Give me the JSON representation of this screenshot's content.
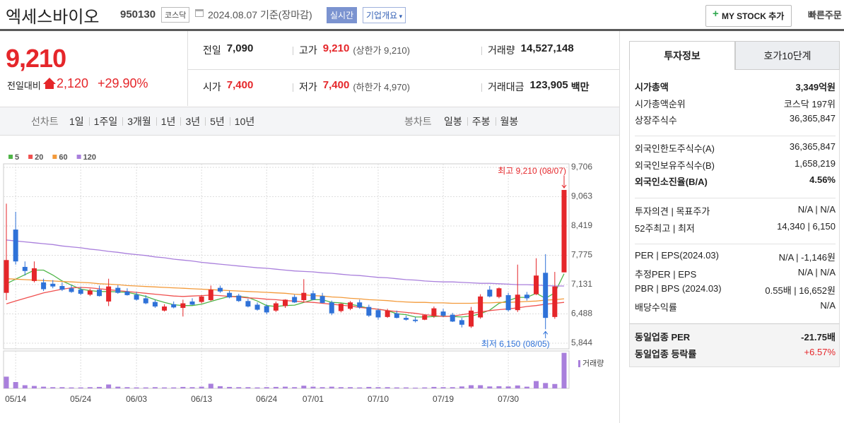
{
  "header": {
    "name": "엑세스바이오",
    "code": "950130",
    "market": "코스닥",
    "date": "2024.08.07 기준(장마감)",
    "realtime": "실시간",
    "company_info": "기업개요",
    "mystock": "MY STOCK 추가",
    "quick_order": "빠른주문"
  },
  "price": {
    "current": "9,210",
    "change_label": "전일대비",
    "change": "2,120",
    "rate": "+29.90%"
  },
  "summary": [
    [
      {
        "label": "전일",
        "value": "7,090"
      },
      {
        "label": "고가",
        "value": "9,210",
        "note": "(상한가 9,210)"
      },
      {
        "label": "거래량",
        "value": "14,527,148"
      }
    ],
    [
      {
        "label": "시가",
        "value": "7,400"
      },
      {
        "label": "저가",
        "value": "7,400",
        "note": "(하한가 4,970)"
      },
      {
        "label": "거래대금",
        "value": "123,905",
        "unit": "백만"
      }
    ]
  ],
  "toolbar": {
    "line_label": "선차트",
    "line_periods": [
      "1일",
      "1주일",
      "3개월",
      "1년",
      "3년",
      "5년",
      "10년"
    ],
    "candle_label": "봉차트",
    "candle_periods": [
      "일봉",
      "주봉",
      "월봉"
    ]
  },
  "chart_data": {
    "type": "candlestick",
    "categories": [
      null,
      "05/14",
      null,
      null,
      null,
      null,
      null,
      null,
      "05/24",
      null,
      null,
      null,
      null,
      null,
      "06/03",
      null,
      null,
      null,
      null,
      null,
      null,
      "06/13",
      null,
      null,
      null,
      null,
      null,
      null,
      "06/24",
      null,
      null,
      null,
      null,
      "07/01",
      null,
      null,
      null,
      null,
      null,
      null,
      "07/10",
      null,
      null,
      null,
      null,
      null,
      null,
      "07/19",
      null,
      null,
      null,
      null,
      null,
      null,
      "07/30",
      null,
      null,
      null,
      null,
      null,
      null
    ],
    "open": [
      6950,
      8340,
      7520,
      7210,
      7180,
      7150,
      7100,
      7050,
      7020,
      6910,
      7020,
      6760,
      7060,
      6980,
      6910,
      6830,
      6750,
      6560,
      6700,
      6620,
      6760,
      6750,
      6790,
      7060,
      6950,
      6890,
      6770,
      6690,
      6660,
      6560,
      6660,
      6860,
      6790,
      6940,
      6880,
      6740,
      6550,
      6600,
      6740,
      6640,
      6570,
      6420,
      6500,
      6400,
      6360,
      6360,
      6440,
      6540,
      6470,
      6350,
      6210,
      6410,
      7020,
      6860,
      6900,
      6570,
      6910,
      6920,
      7390,
      6420,
      7400
    ],
    "high": [
      8910,
      8730,
      7640,
      7640,
      7260,
      7230,
      7180,
      7120,
      7080,
      7040,
      7110,
      7260,
      7120,
      7050,
      6970,
      6900,
      6800,
      6700,
      6760,
      6800,
      6830,
      6900,
      7110,
      7110,
      7000,
      6930,
      6820,
      6740,
      6700,
      6760,
      6810,
      6910,
      7250,
      7000,
      6950,
      6780,
      6720,
      6770,
      6800,
      6690,
      6600,
      6600,
      6560,
      6450,
      6420,
      6470,
      6650,
      6600,
      6510,
      6400,
      6640,
      6920,
      7100,
      7070,
      6950,
      7570,
      6970,
      7710,
      7800,
      7410,
      9210
    ],
    "low": [
      6790,
      7570,
      7330,
      7180,
      6990,
      7050,
      6990,
      6950,
      6900,
      6880,
      6870,
      6660,
      6930,
      6890,
      6780,
      6700,
      6620,
      6540,
      6610,
      6430,
      6680,
      6720,
      6770,
      6950,
      6830,
      6750,
      6630,
      6560,
      6480,
      6530,
      6620,
      6730,
      6750,
      6790,
      6720,
      6460,
      6520,
      6570,
      6600,
      6420,
      6360,
      6400,
      6390,
      6340,
      6300,
      6350,
      6400,
      6420,
      6310,
      6190,
      6180,
      6380,
      6850,
      6830,
      6540,
      6530,
      6780,
      6900,
      6150,
      6380,
      7400
    ],
    "close": [
      7670,
      7640,
      7430,
      7490,
      7030,
      7090,
      7020,
      6970,
      6930,
      7000,
      6880,
      7090,
      6950,
      6900,
      6800,
      6720,
      6650,
      6650,
      6630,
      6720,
      6690,
      6870,
      7020,
      6980,
      6850,
      6770,
      6650,
      6580,
      6520,
      6720,
      6800,
      6740,
      6950,
      6800,
      6730,
      6500,
      6710,
      6740,
      6630,
      6450,
      6410,
      6560,
      6400,
      6360,
      6330,
      6460,
      6610,
      6450,
      6320,
      6250,
      6560,
      6870,
      6870,
      7050,
      6570,
      6910,
      6830,
      7330,
      6400,
      7090,
      9210
    ],
    "up_color": "#e5262a",
    "down_color": "#2f72d8",
    "ma": [
      {
        "name": "5",
        "color": "#4fb548",
        "values": [
          7150,
          7250,
          7350,
          7450,
          7450,
          7340,
          7210,
          7120,
          7030,
          7000,
          6980,
          6980,
          6970,
          6960,
          6920,
          6870,
          6800,
          6740,
          6690,
          6670,
          6670,
          6700,
          6760,
          6820,
          6870,
          6870,
          6850,
          6770,
          6670,
          6650,
          6670,
          6680,
          6740,
          6800,
          6800,
          6740,
          6730,
          6700,
          6660,
          6610,
          6590,
          6560,
          6490,
          6470,
          6420,
          6420,
          6430,
          6440,
          6430,
          6420,
          6440,
          6490,
          6570,
          6720,
          6780,
          6850,
          6850,
          6940,
          6830,
          6950,
          7370
        ]
      },
      {
        "name": "20",
        "color": "#f0504f",
        "values": [
          6710,
          6770,
          6830,
          6890,
          6950,
          6990,
          7030,
          7060,
          7070,
          7060,
          7040,
          7020,
          7000,
          6980,
          6960,
          6940,
          6920,
          6900,
          6880,
          6870,
          6880,
          6890,
          6900,
          6890,
          6870,
          6860,
          6840,
          6830,
          6810,
          6800,
          6780,
          6770,
          6750,
          6740,
          6720,
          6700,
          6680,
          6660,
          6630,
          6610,
          6590,
          6560,
          6540,
          6520,
          6500,
          6470,
          6450,
          6430,
          6440,
          6470,
          6500,
          6530,
          6560,
          6580,
          6600,
          6620,
          6650,
          6670,
          6700,
          6720,
          6740
        ]
      },
      {
        "name": "60",
        "color": "#f39a3a",
        "values": [
          7260,
          7250,
          7240,
          7230,
          7220,
          7210,
          7200,
          7190,
          7180,
          7170,
          7150,
          7140,
          7130,
          7110,
          7100,
          7090,
          7080,
          7070,
          7060,
          7050,
          7040,
          7030,
          7020,
          7010,
          7000,
          6990,
          6980,
          6970,
          6960,
          6950,
          6940,
          6920,
          6910,
          6890,
          6880,
          6860,
          6850,
          6830,
          6820,
          6800,
          6790,
          6780,
          6760,
          6750,
          6740,
          6740,
          6730,
          6730,
          6720,
          6720,
          6720,
          6730,
          6730,
          6740,
          6740,
          6750,
          6760,
          6770,
          6790,
          6800,
          6820
        ]
      },
      {
        "name": "120",
        "color": "#a97fdc",
        "values": [
          8110,
          8090,
          8070,
          8050,
          8030,
          8010,
          7980,
          7960,
          7940,
          7910,
          7890,
          7860,
          7840,
          7810,
          7790,
          7770,
          7740,
          7720,
          7690,
          7670,
          7650,
          7620,
          7600,
          7580,
          7560,
          7540,
          7520,
          7500,
          7490,
          7470,
          7450,
          7430,
          7420,
          7410,
          7390,
          7380,
          7360,
          7340,
          7330,
          7310,
          7290,
          7280,
          7260,
          7240,
          7230,
          7210,
          7200,
          7190,
          7190,
          7180,
          7170,
          7160,
          7160,
          7150,
          7140,
          7130,
          7130,
          7120,
          7110,
          7100,
          7100
        ]
      }
    ],
    "volume": [
      4800000,
      2600000,
      1300000,
      1000000,
      700000,
      500000,
      500000,
      400000,
      400000,
      500000,
      600000,
      1600000,
      700000,
      500000,
      400000,
      400000,
      500000,
      400000,
      400000,
      600000,
      500000,
      700000,
      1900000,
      900000,
      600000,
      500000,
      500000,
      400000,
      500000,
      600000,
      700000,
      500000,
      1100000,
      700000,
      500000,
      700000,
      500000,
      500000,
      400000,
      600000,
      500000,
      500000,
      400000,
      400000,
      300000,
      400000,
      600000,
      500000,
      500000,
      800000,
      1300000,
      1300000,
      800000,
      900000,
      800000,
      1200000,
      700000,
      3000000,
      2200000,
      1800000,
      14527148
    ],
    "volume_color": "#a97fdc",
    "volume_label": "거래량",
    "volume_ylim": [
      0,
      15000000
    ],
    "ylim": [
      5844,
      9706
    ],
    "yticks": [
      {
        "value": 9706,
        "label": "9,706"
      },
      {
        "value": 9063,
        "label": "9,063"
      },
      {
        "value": 8419,
        "label": "8,419"
      },
      {
        "value": 7775,
        "label": "7,775"
      },
      {
        "value": 7131,
        "label": "7,131"
      },
      {
        "value": 6488,
        "label": "6,488"
      },
      {
        "value": 5844,
        "label": "5,844"
      }
    ],
    "grid": true,
    "high_label": "최고 9,210 (08/07)",
    "low_label": "최저 6,150 (08/05)"
  },
  "info": {
    "tabs": [
      "투자정보",
      "호가10단계"
    ],
    "groups": [
      [
        {
          "label": "시가총액",
          "value": "3,349억원"
        },
        {
          "label": "시가총액순위",
          "value": "코스닥 197위"
        },
        {
          "label": "상장주식수",
          "value": "36,365,847"
        }
      ],
      [
        {
          "label": "외국인한도주식수(A)",
          "value": "36,365,847"
        },
        {
          "label": "외국인보유주식수(B)",
          "value": "1,658,219"
        },
        {
          "label": "외국인소진율(B/A)",
          "value": "4.56%"
        }
      ],
      [
        {
          "label": "투자의견 | 목표주가",
          "value": "N/A | N/A"
        },
        {
          "label": "52주최고 | 최저",
          "value": "14,340 | 6,150"
        }
      ],
      [
        {
          "label": "PER | EPS(2024.03)",
          "value": "N/A | -1,146원"
        },
        {
          "label": "추정PER | EPS",
          "value": "N/A | N/A"
        },
        {
          "label": "PBR | BPS (2024.03)",
          "value": "0.55배 | 16,652원"
        },
        {
          "label": "배당수익률",
          "value": "N/A"
        }
      ],
      [
        {
          "label": "동일업종 PER",
          "value": "-21.75배"
        },
        {
          "label": "동일업종 등락률",
          "value": "+6.57%"
        }
      ]
    ]
  }
}
